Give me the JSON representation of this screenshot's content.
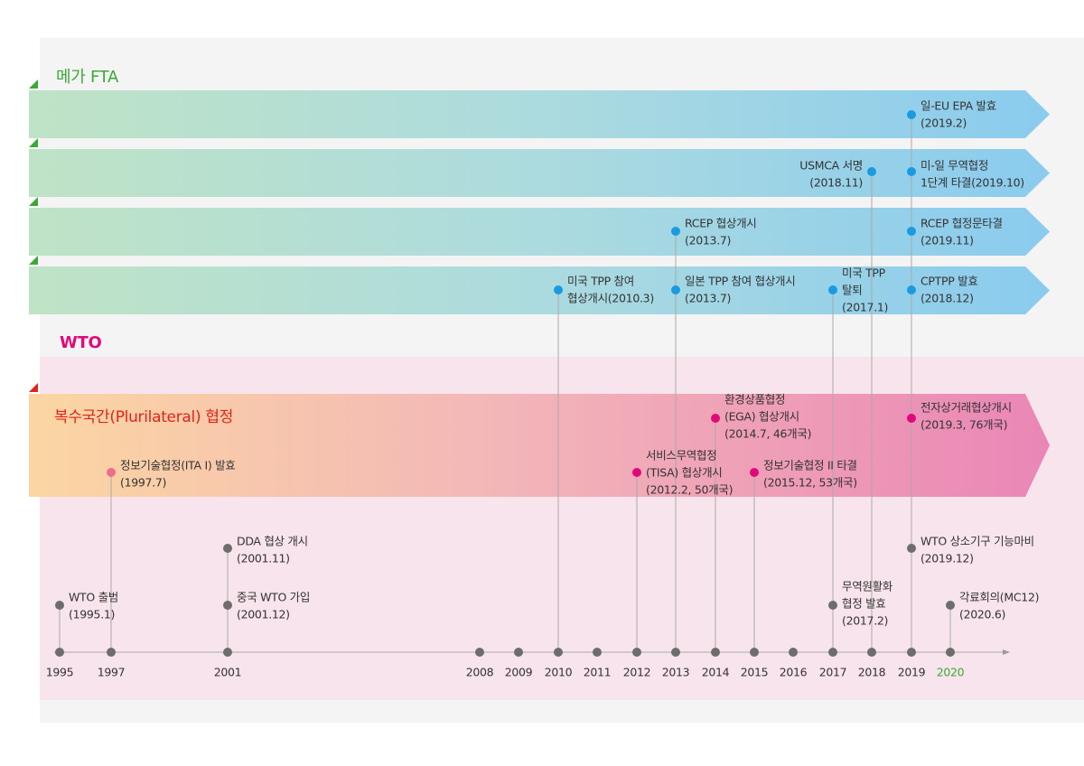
{
  "mega_fta": {
    "title": "메가 FTA",
    "events": [
      {
        "lines": [
          "일-EU EPA 발효",
          "(2019.2)"
        ],
        "color": "#1a9be0"
      },
      {
        "lines": [
          "USMCA 서명",
          "(2018.11)"
        ],
        "color": "#1a9be0"
      },
      {
        "lines": [
          "미-일 무역협정",
          "1단계 타결(2019.10)"
        ],
        "color": "#1a9be0"
      },
      {
        "lines": [
          "RCEP 협상개시",
          "(2013.7)"
        ],
        "color": "#1a9be0"
      },
      {
        "lines": [
          "RCEP 협정문타결",
          "(2019.11)"
        ],
        "color": "#1a9be0"
      },
      {
        "lines": [
          "미국 TPP 참여",
          "협상개시(2010.3)"
        ],
        "color": "#1a9be0"
      },
      {
        "lines": [
          "일본 TPP 참여 협상개시",
          "(2013.7)"
        ],
        "color": "#1a9be0"
      },
      {
        "lines": [
          "미국 TPP",
          "탈퇴",
          "(2017.1)"
        ],
        "color": "#1a9be0"
      },
      {
        "lines": [
          "CPTPP 발효",
          "(2018.12)"
        ],
        "color": "#1a9be0"
      }
    ]
  },
  "wto": {
    "title": "WTO",
    "events": [
      {
        "lines": [
          "WTO 출범",
          "(1995.1)"
        ],
        "color": "#6d6d6d"
      },
      {
        "lines": [
          "DDA 협상 개시",
          "(2001.11)"
        ],
        "color": "#6d6d6d"
      },
      {
        "lines": [
          "중국 WTO 가입",
          "(2001.12)"
        ],
        "color": "#6d6d6d"
      },
      {
        "lines": [
          "무역원활화",
          "협정 발효",
          "(2017.2)"
        ],
        "color": "#6d6d6d"
      },
      {
        "lines": [
          "WTO 상소기구 기능마비",
          "(2019.12)"
        ],
        "color": "#6d6d6d"
      },
      {
        "lines": [
          "각료회의(MC12)",
          "(2020.6)"
        ],
        "color": "#6d6d6d"
      }
    ]
  },
  "plurilateral": {
    "title": "복수국간(Plurilateral) 협정",
    "events": [
      {
        "lines": [
          "정보기술협정(ITA I) 발효",
          "(1997.7)"
        ],
        "color": "#ec6e8a"
      },
      {
        "lines": [
          "서비스무역협정",
          "(TISA) 협상개시",
          "(2012.2, 50개국)"
        ],
        "color": "#e0097a"
      },
      {
        "lines": [
          "환경상품협정",
          "(EGA) 협상개시",
          "(2014.7, 46개국)"
        ],
        "color": "#e0097a"
      },
      {
        "lines": [
          "정보기술협정 II 타결",
          "(2015.12, 53개국)"
        ],
        "color": "#e0097a"
      },
      {
        "lines": [
          "전자상거래협상개시",
          "(2019.3, 76개국)"
        ],
        "color": "#e0097a"
      }
    ]
  },
  "timeline": {
    "years": [
      "1995",
      "1997",
      "2001",
      "2008",
      "2009",
      "2010",
      "2011",
      "2012",
      "2013",
      "2014",
      "2015",
      "2016",
      "2017",
      "2018",
      "2019",
      "2020"
    ]
  }
}
